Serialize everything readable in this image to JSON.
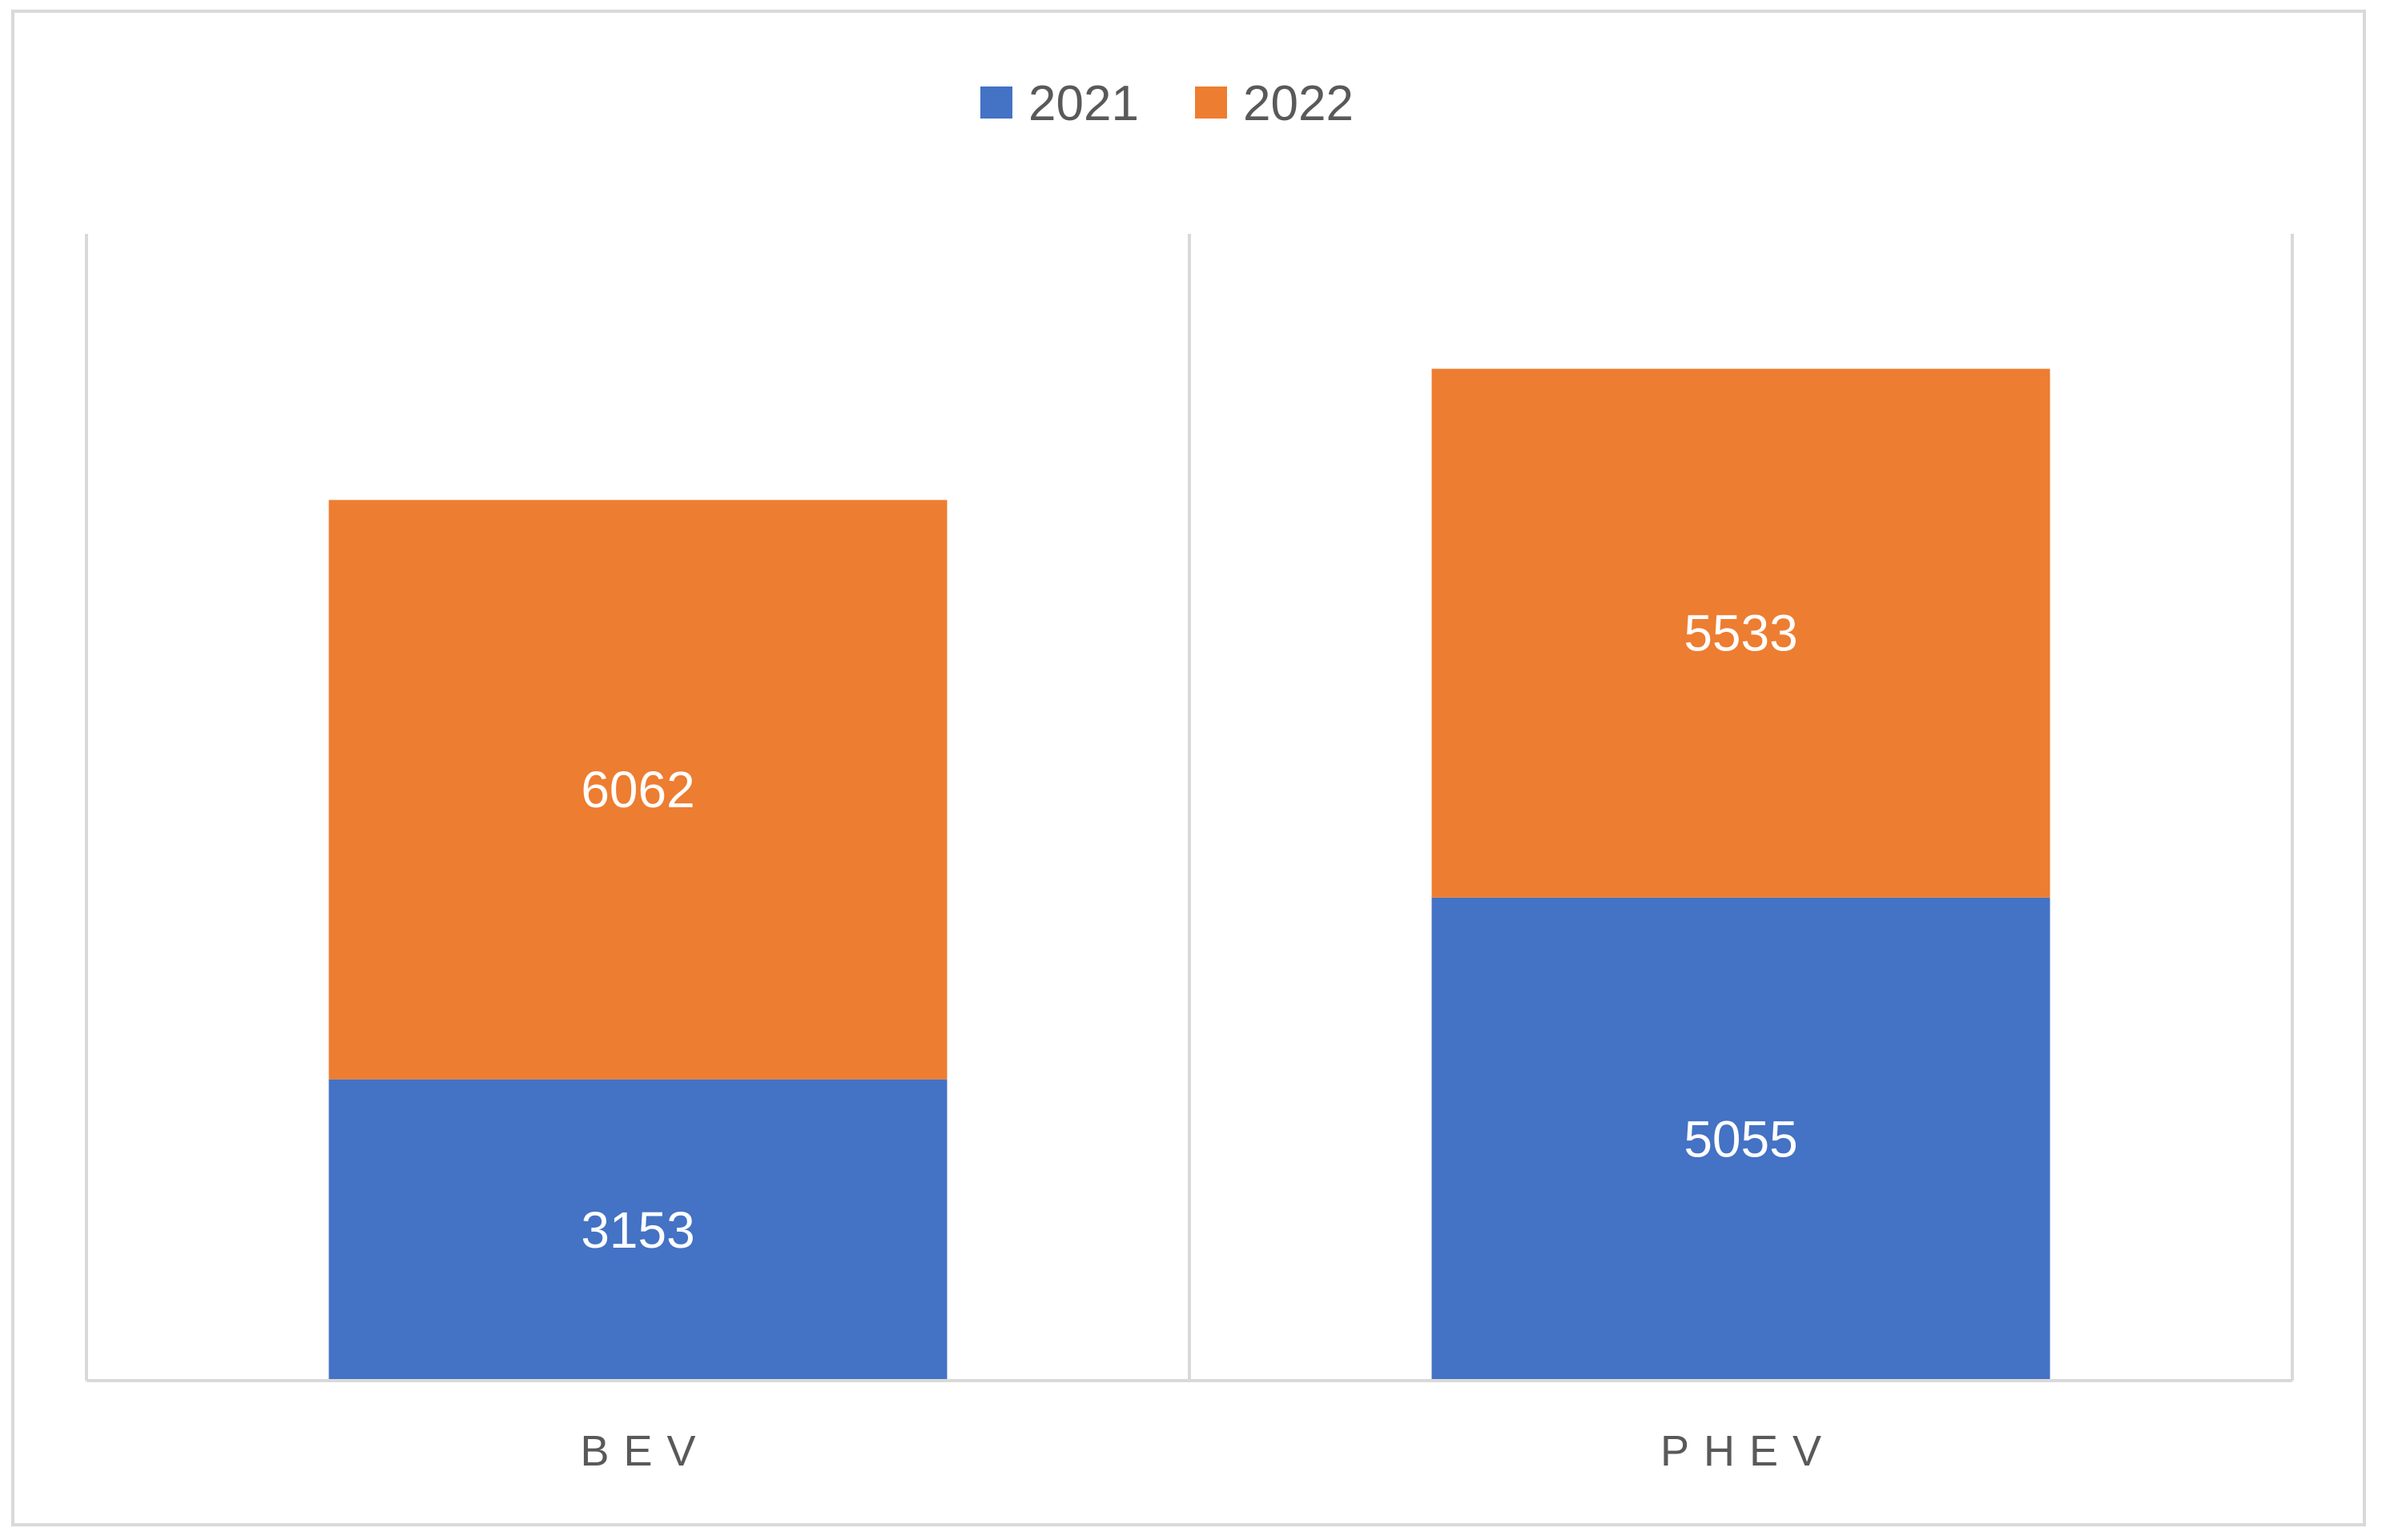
{
  "chart_data": {
    "type": "bar",
    "stacked": true,
    "categories": [
      "BEV",
      "PHEV"
    ],
    "series": [
      {
        "name": "2021",
        "values": [
          3153,
          5055
        ],
        "color": "#4472c4"
      },
      {
        "name": "2022",
        "values": [
          6062,
          5533
        ],
        "color": "#ed7d31"
      }
    ],
    "title": "",
    "xlabel": "",
    "ylabel": "",
    "ylim": [
      0,
      12000
    ],
    "grid": "vertical category separators only",
    "legend_position": "top",
    "data_labels": true
  }
}
